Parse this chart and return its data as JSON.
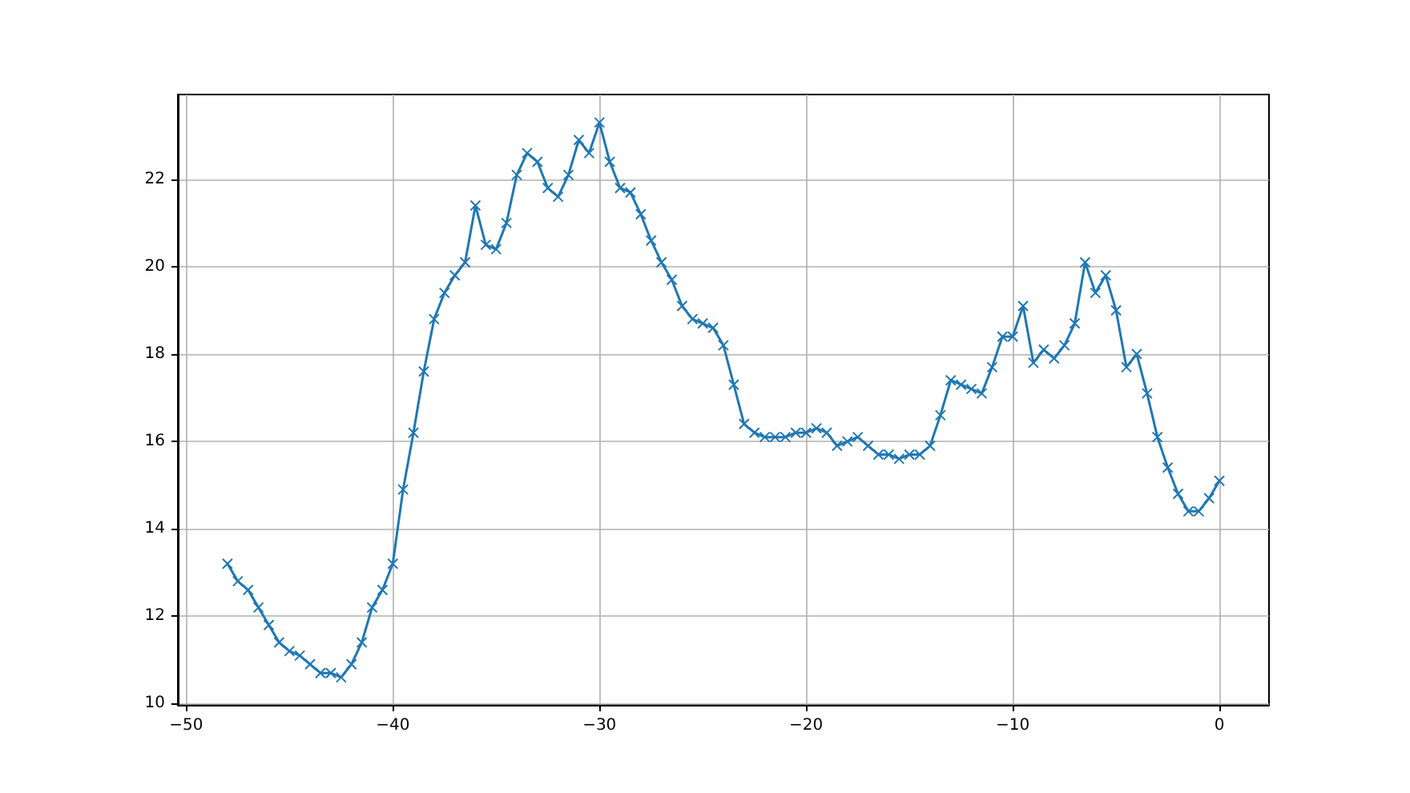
{
  "chart_data": {
    "type": "line",
    "x": [
      -48,
      -47.5,
      -47,
      -46.5,
      -46,
      -45.5,
      -45,
      -44.5,
      -44,
      -43.5,
      -43,
      -42.5,
      -42,
      -41.5,
      -41,
      -40.5,
      -40,
      -39.5,
      -39,
      -38.5,
      -38,
      -37.5,
      -37,
      -36.5,
      -36,
      -35.5,
      -35,
      -34.5,
      -34,
      -33.5,
      -33,
      -32.5,
      -32,
      -31.5,
      -31,
      -30.5,
      -30,
      -29.5,
      -29,
      -28.5,
      -28,
      -27.5,
      -27,
      -26.5,
      -26,
      -25.5,
      -25,
      -24.5,
      -24,
      -23.5,
      -23,
      -22.5,
      -22,
      -21.5,
      -21,
      -20.5,
      -20,
      -19.5,
      -19,
      -18.5,
      -18,
      -17.5,
      -17,
      -16.5,
      -16,
      -15.5,
      -15,
      -14.5,
      -14,
      -13.5,
      -13,
      -12.5,
      -12,
      -11.5,
      -11,
      -10.5,
      -10,
      -9.5,
      -9,
      -8.5,
      -8,
      -7.5,
      -7,
      -6.5,
      -6,
      -5.5,
      -5,
      -4.5,
      -4,
      -3.5,
      -3,
      -2.5,
      -2,
      -1.5,
      -1,
      -0.5,
      0
    ],
    "series": [
      {
        "color": "#1f77b4",
        "values": [
          13.2,
          12.8,
          12.6,
          12.2,
          11.8,
          11.4,
          11.2,
          11.1,
          10.9,
          10.7,
          10.7,
          10.6,
          10.9,
          11.4,
          12.2,
          12.6,
          13.2,
          14.9,
          16.2,
          17.6,
          18.8,
          19.4,
          19.8,
          20.1,
          21.4,
          20.5,
          20.4,
          21.0,
          22.1,
          22.6,
          22.4,
          21.8,
          21.6,
          22.1,
          22.9,
          22.6,
          23.3,
          22.4,
          21.8,
          21.7,
          21.2,
          20.6,
          20.1,
          19.7,
          19.1,
          18.8,
          18.7,
          18.6,
          18.2,
          17.3,
          16.4,
          16.2,
          16.1,
          16.1,
          16.1,
          16.2,
          16.2,
          16.3,
          16.2,
          15.9,
          16.0,
          16.1,
          15.9,
          15.7,
          15.7,
          15.6,
          15.7,
          15.7,
          15.9,
          16.6,
          17.4,
          17.3,
          17.2,
          17.1,
          17.7,
          18.4,
          18.4,
          19.1,
          17.8,
          18.1,
          17.9,
          18.2,
          18.7,
          20.1,
          19.4,
          19.8,
          19.0,
          17.7,
          18.0,
          17.1,
          16.1,
          15.4,
          14.8,
          14.4,
          14.4,
          14.7,
          15.1
        ]
      }
    ],
    "xlim": [
      -50.4,
      2.4
    ],
    "ylim": [
      9.97,
      23.94
    ],
    "xticks": [
      -50,
      -40,
      -30,
      -20,
      -10,
      0
    ],
    "yticks": [
      10,
      12,
      14,
      16,
      18,
      20,
      22
    ],
    "grid": true,
    "marker": "cross",
    "line_style": "solid"
  }
}
